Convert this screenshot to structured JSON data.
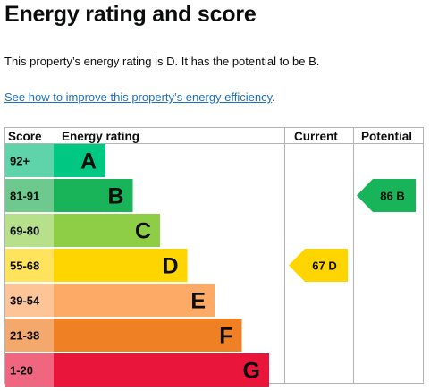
{
  "header": {
    "title": "Energy rating and score"
  },
  "summary": {
    "text": "This property’s energy rating is D. It has the potential to be B."
  },
  "link": {
    "text": "See how to improve this property’s energy efficiency",
    "trailing": "."
  },
  "chart": {
    "columns": {
      "score": "Score",
      "rating": "Energy rating",
      "current": "Current",
      "potential": "Potential"
    },
    "bands": [
      {
        "score": "92+",
        "letter": "A",
        "color": "#00c781",
        "score_bg": "#5fd3a9"
      },
      {
        "score": "81-91",
        "letter": "B",
        "color": "#19b459",
        "score_bg": "#6ec98f"
      },
      {
        "score": "69-80",
        "letter": "C",
        "color": "#8dce46",
        "score_bg": "#b6e08a"
      },
      {
        "score": "55-68",
        "letter": "D",
        "color": "#ffd500",
        "score_bg": "#ffe35c"
      },
      {
        "score": "39-54",
        "letter": "E",
        "color": "#fcaa65",
        "score_bg": "#fdc597"
      },
      {
        "score": "21-38",
        "letter": "F",
        "color": "#ef8023",
        "score_bg": "#f4a86b"
      },
      {
        "score": "1-20",
        "letter": "G",
        "color": "#e9153b",
        "score_bg": "#f0657f"
      }
    ],
    "current": {
      "score": 67,
      "letter": "D",
      "label": "67  D",
      "band_index": 3,
      "color": "#ffd500",
      "text_color": "#0b0c0c"
    },
    "potential": {
      "score": 86,
      "letter": "B",
      "label": "86  B",
      "band_index": 1,
      "color": "#19b459",
      "text_color": "#0b0c0c"
    }
  }
}
